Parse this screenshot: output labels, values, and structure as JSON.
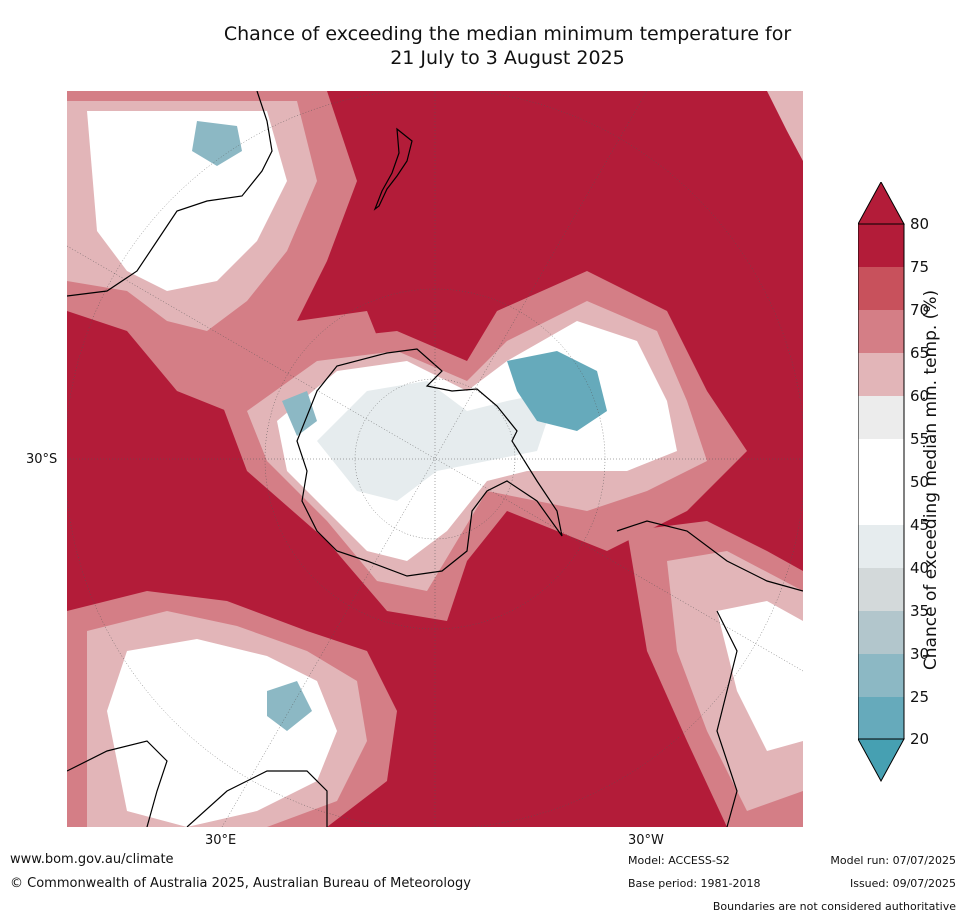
{
  "title": {
    "line1": "Chance of exceeding the median minimum temperature for",
    "line2": "21 July to 3 August 2025"
  },
  "axes": {
    "lat_label": "30°S",
    "lon_label_left": "30°E",
    "lon_label_right": "30°W"
  },
  "colorbar": {
    "title": "Chance of exceeding median min. temp. (%)",
    "ticks": [
      "80",
      "75",
      "70",
      "65",
      "60",
      "55",
      "50",
      "45",
      "40",
      "35",
      "30",
      "25",
      "20"
    ],
    "colors": {
      "75-80": "#b31c39",
      "70-75": "#c8515c",
      "65-70": "#d47e86",
      "60-65": "#e2b5b8",
      "55-60": "#ececec",
      "50-55": "#ffffff",
      "45-50": "#ffffff",
      "40-45": "#e6ecee",
      "35-40": "#d3d9da",
      "30-35": "#b2c6cc",
      "25-30": "#8cb8c4",
      "20-25": "#66aabb",
      "below-20": "#46a0b2",
      "above-80": "#b31c39"
    }
  },
  "footer": {
    "website": "www.bom.gov.au/climate",
    "copyright": "© Commonwealth of Australia 2025, Australian Bureau of Meteorology",
    "model": "Model: ACCESS-S2",
    "base_period": "Base period: 1981-2018",
    "model_run": "Model run: 07/07/2025",
    "issued": "Issued: 09/07/2025",
    "disclaimer": "Boundaries are not considered authoritative"
  }
}
